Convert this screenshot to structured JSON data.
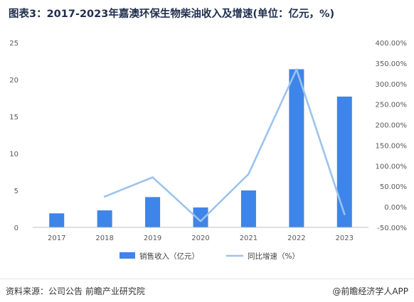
{
  "title": "图表3：2017-2023年嘉澳环保生物柴油收入及增速(单位：亿元，%)",
  "footer": {
    "source": "资料来源：公司公告 前瞻产业研究院",
    "brand": "@前瞻经济学人APP"
  },
  "chart_data": {
    "type": "bar+line",
    "categories": [
      "2017",
      "2018",
      "2019",
      "2020",
      "2021",
      "2022",
      "2023"
    ],
    "series": [
      {
        "name": "销售收入（亿元）",
        "type": "bar",
        "axis": "left",
        "color": "#3d85e8",
        "values": [
          1.9,
          2.3,
          4.1,
          2.7,
          5.0,
          21.4,
          17.7
        ]
      },
      {
        "name": "同比增速（%）",
        "type": "line",
        "axis": "right",
        "color": "#9cc3ef",
        "values": [
          null,
          25.0,
          72.0,
          -35.0,
          80.0,
          335.0,
          -18.0
        ]
      }
    ],
    "left_axis": {
      "ticks": [
        "0",
        "5",
        "10",
        "15",
        "20",
        "25"
      ],
      "ylim": [
        0,
        25
      ]
    },
    "right_axis": {
      "ticks": [
        "-50.00%",
        "0.00%",
        "50.00%",
        "100.00%",
        "150.00%",
        "200.00%",
        "250.00%",
        "300.00%",
        "350.00%",
        "400.00%"
      ],
      "ylim": [
        -50,
        400
      ]
    },
    "legend_position": "bottom",
    "grid": false
  }
}
